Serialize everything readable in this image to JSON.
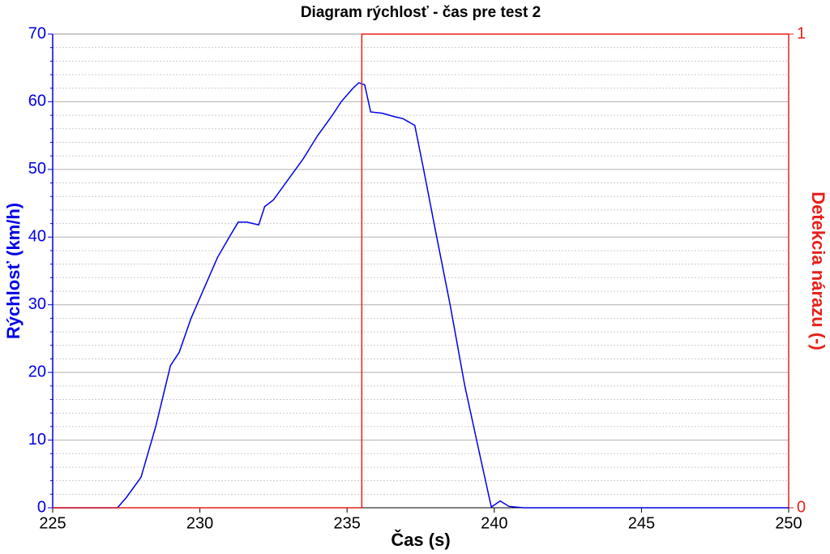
{
  "chart_data": {
    "type": "line",
    "title": "Diagram rýchlosť - čas pre test 2",
    "xlabel": "Čas (s)",
    "ylabel": "Rýchlosť (km/h)",
    "y2label": "Detekcia nárazu (-)",
    "xlim": [
      225,
      250
    ],
    "xticks": [
      225,
      230,
      235,
      240,
      245,
      250
    ],
    "ylim": [
      0,
      70
    ],
    "yticks": [
      0,
      10,
      20,
      30,
      40,
      50,
      60,
      70
    ],
    "y2lim": [
      0,
      1
    ],
    "y2ticks": [
      0,
      1
    ],
    "grid": true,
    "series": [
      {
        "name": "Rýchlosť",
        "color": "#0000e6",
        "x": [
          225,
          227.2,
          227.5,
          228,
          228.5,
          229,
          229.3,
          229.7,
          230.2,
          230.6,
          231,
          231.3,
          231.6,
          232,
          232.2,
          232.5,
          233,
          233.5,
          234,
          234.5,
          234.8,
          235.2,
          235.4,
          235.6,
          235.8,
          236.2,
          236.6,
          236.9,
          237.1,
          237.3,
          237.6,
          238,
          238.5,
          239,
          239.5,
          239.9,
          240.2,
          240.5,
          241,
          250
        ],
        "values": [
          0,
          0,
          1.5,
          4.5,
          12,
          21,
          23,
          28,
          33,
          37,
          40,
          42.2,
          42.2,
          41.8,
          44.5,
          45.5,
          48.5,
          51.5,
          55,
          58,
          60,
          62,
          62.8,
          62.5,
          58.5,
          58.3,
          57.8,
          57.5,
          57,
          56.5,
          50,
          41,
          30,
          18,
          8,
          0.1,
          1,
          0.2,
          0,
          0
        ]
      },
      {
        "name": "Detekcia nárazu",
        "color": "#e8201a",
        "axis": "y2",
        "x": [
          225,
          235.5,
          235.5,
          250
        ],
        "values": [
          0,
          0,
          1,
          1
        ]
      }
    ]
  }
}
